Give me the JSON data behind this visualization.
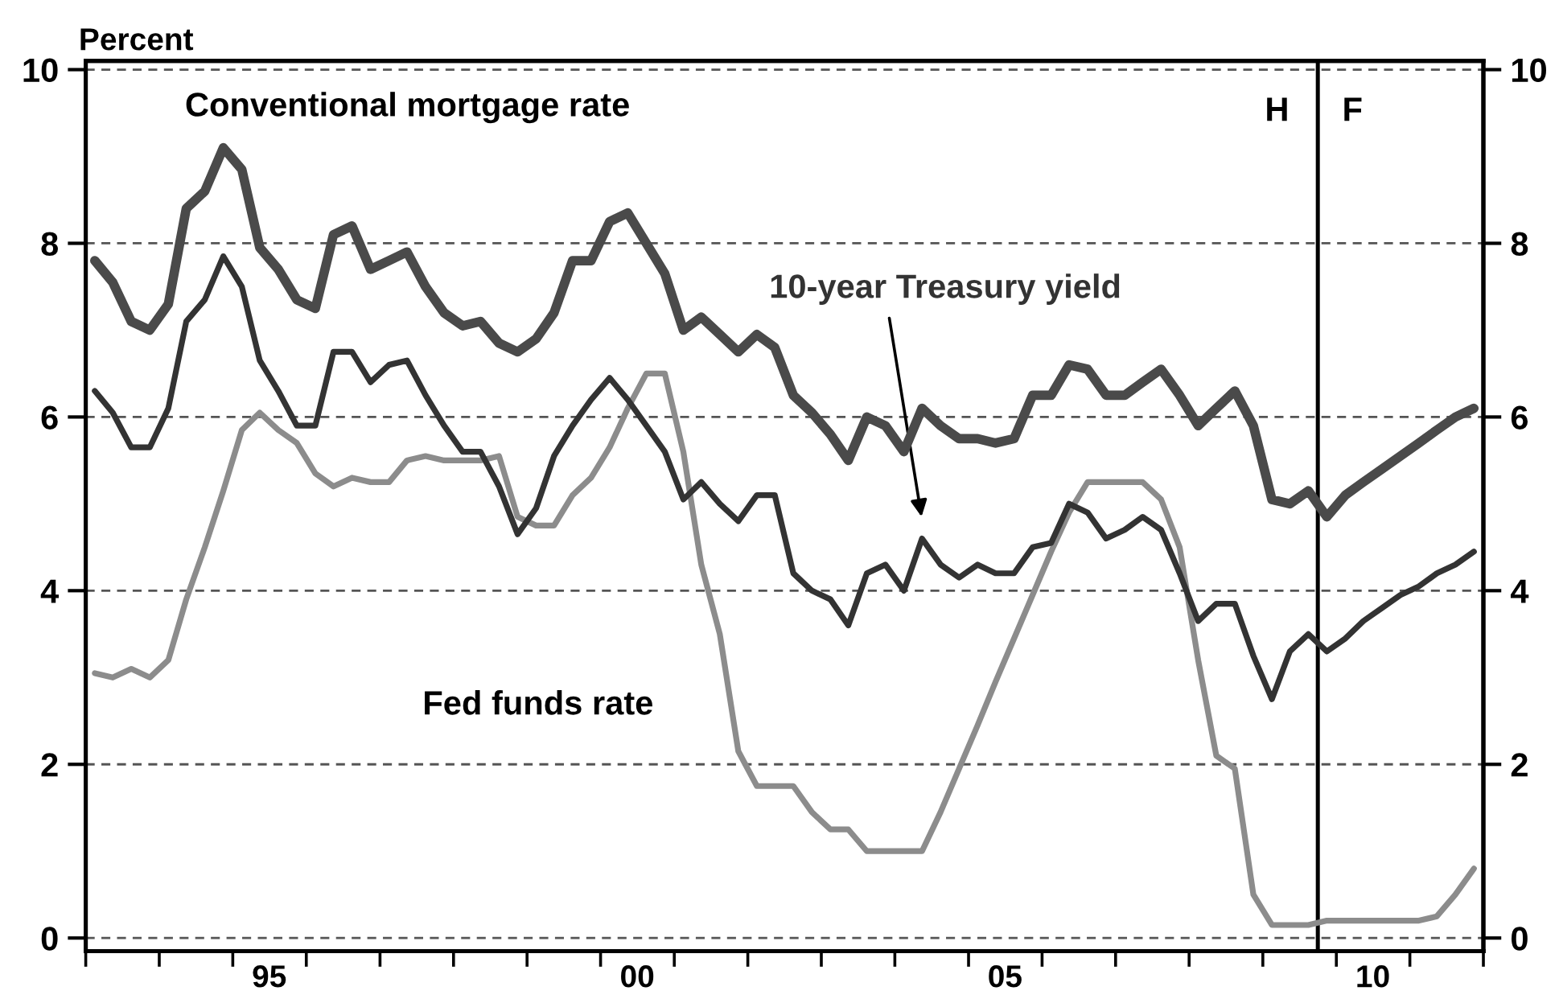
{
  "chart_data": {
    "type": "line",
    "ylabel": "Percent",
    "x": [
      "1993-02-15",
      "1993-05-15",
      "1993-08-15",
      "1993-11-15",
      "1994-02-15",
      "1994-05-15",
      "1994-08-15",
      "1994-11-15",
      "1995-02-15",
      "1995-05-15",
      "1995-08-15",
      "1995-11-15",
      "1996-02-15",
      "1996-05-15",
      "1996-08-15",
      "1996-11-15",
      "1997-02-15",
      "1997-05-15",
      "1997-08-15",
      "1997-11-15",
      "1998-02-15",
      "1998-05-15",
      "1998-08-15",
      "1998-11-15",
      "1999-02-15",
      "1999-05-15",
      "1999-08-15",
      "1999-11-15",
      "2000-02-15",
      "2000-05-15",
      "2000-08-15",
      "2000-11-15",
      "2001-02-15",
      "2001-05-15",
      "2001-08-15",
      "2001-11-15",
      "2002-02-15",
      "2002-05-15",
      "2002-08-15",
      "2002-11-15",
      "2003-02-15",
      "2003-05-15",
      "2003-08-15",
      "2003-11-15",
      "2004-02-15",
      "2004-05-15",
      "2004-08-15",
      "2004-11-15",
      "2005-02-15",
      "2005-05-15",
      "2005-08-15",
      "2005-11-15",
      "2006-02-15",
      "2006-05-15",
      "2006-08-15",
      "2006-11-15",
      "2007-02-15",
      "2007-05-15",
      "2007-08-15",
      "2007-11-15",
      "2008-02-15",
      "2008-05-15",
      "2008-08-15",
      "2008-11-15",
      "2009-02-15",
      "2009-05-15",
      "2009-08-15",
      "2009-11-15",
      "2010-02-15",
      "2010-05-15",
      "2010-08-15",
      "2010-11-15",
      "2011-02-15",
      "2011-05-15",
      "2011-08-15",
      "2011-11-15"
    ],
    "series": [
      {
        "name": "Conventional mortgage rate",
        "color": "#4a4a4a",
        "values": [
          7.8,
          7.55,
          7.1,
          7.0,
          7.3,
          8.4,
          8.6,
          9.1,
          8.85,
          7.95,
          7.7,
          7.35,
          7.25,
          8.1,
          8.2,
          7.7,
          7.8,
          7.9,
          7.5,
          7.2,
          7.05,
          7.1,
          6.85,
          6.75,
          6.9,
          7.2,
          7.8,
          7.8,
          8.25,
          8.35,
          8.0,
          7.65,
          7.0,
          7.15,
          6.95,
          6.75,
          6.95,
          6.8,
          6.25,
          6.05,
          5.8,
          5.5,
          6.0,
          5.9,
          5.6,
          6.1,
          5.9,
          5.75,
          5.75,
          5.7,
          5.75,
          6.25,
          6.25,
          6.6,
          6.55,
          6.25,
          6.25,
          6.4,
          6.55,
          6.25,
          5.9,
          6.1,
          6.3,
          5.9,
          5.05,
          5.0,
          5.15,
          4.85,
          5.1,
          5.25,
          5.4,
          5.55,
          5.7,
          5.85,
          6.0,
          6.1
        ]
      },
      {
        "name": "10-year Treasury yield",
        "color": "#333333",
        "values": [
          6.3,
          6.05,
          5.65,
          5.65,
          6.1,
          7.1,
          7.35,
          7.85,
          7.5,
          6.65,
          6.3,
          5.9,
          5.9,
          6.75,
          6.75,
          6.4,
          6.6,
          6.65,
          6.25,
          5.9,
          5.6,
          5.6,
          5.2,
          4.65,
          4.95,
          5.55,
          5.9,
          6.2,
          6.45,
          6.2,
          5.9,
          5.6,
          5.05,
          5.25,
          5.0,
          4.8,
          5.1,
          5.1,
          4.2,
          4.0,
          3.9,
          3.6,
          4.2,
          4.3,
          4.0,
          4.6,
          4.3,
          4.15,
          4.3,
          4.2,
          4.2,
          4.5,
          4.55,
          5.0,
          4.9,
          4.6,
          4.7,
          4.85,
          4.7,
          4.2,
          3.65,
          3.85,
          3.85,
          3.25,
          2.75,
          3.3,
          3.5,
          3.3,
          3.45,
          3.65,
          3.8,
          3.95,
          4.05,
          4.2,
          4.3,
          4.45
        ]
      },
      {
        "name": "Fed funds rate",
        "color": "#8c8c8c",
        "values": [
          3.05,
          3.0,
          3.1,
          3.0,
          3.2,
          3.9,
          4.5,
          5.15,
          5.85,
          6.05,
          5.85,
          5.7,
          5.35,
          5.2,
          5.3,
          5.25,
          5.25,
          5.5,
          5.55,
          5.5,
          5.5,
          5.5,
          5.55,
          4.85,
          4.75,
          4.75,
          5.1,
          5.3,
          5.65,
          6.1,
          6.5,
          6.5,
          5.6,
          4.3,
          3.5,
          2.15,
          1.75,
          1.75,
          1.75,
          1.45,
          1.25,
          1.25,
          1.0,
          1.0,
          1.0,
          1.0,
          1.45,
          1.95,
          2.45,
          2.95,
          3.45,
          3.95,
          4.45,
          4.9,
          5.25,
          5.25,
          5.25,
          5.25,
          5.05,
          4.5,
          3.2,
          2.1,
          1.95,
          0.5,
          0.15,
          0.15,
          0.15,
          0.2,
          0.2,
          0.2,
          0.2,
          0.2,
          0.2,
          0.25,
          0.5,
          0.8
        ]
      }
    ],
    "xlim": [
      "1993-01-01",
      "2012-01-01"
    ],
    "xticks": [
      {
        "value": "1993-01-01",
        "label": null
      },
      {
        "value": "1994-01-01",
        "label": null
      },
      {
        "value": "1995-01-01",
        "label": null
      },
      {
        "value": "1996-01-01",
        "label": null
      },
      {
        "value": "1997-01-01",
        "label": null
      },
      {
        "value": "1998-01-01",
        "label": null
      },
      {
        "value": "1999-01-01",
        "label": null
      },
      {
        "value": "2000-01-01",
        "label": null
      },
      {
        "value": "2001-01-01",
        "label": null
      },
      {
        "value": "2002-01-01",
        "label": null
      },
      {
        "value": "2003-01-01",
        "label": null
      },
      {
        "value": "2004-01-01",
        "label": null
      },
      {
        "value": "2005-01-01",
        "label": null
      },
      {
        "value": "2006-01-01",
        "label": null
      },
      {
        "value": "2007-01-01",
        "label": null
      },
      {
        "value": "2008-01-01",
        "label": null
      },
      {
        "value": "2009-01-01",
        "label": null
      },
      {
        "value": "2010-01-01",
        "label": null
      },
      {
        "value": "2011-01-01",
        "label": null
      },
      {
        "value": "2012-01-01",
        "label": null
      },
      {
        "value": "1995-07-01",
        "label": "95"
      },
      {
        "value": "2000-07-01",
        "label": "00"
      },
      {
        "value": "2005-07-01",
        "label": "05"
      },
      {
        "value": "2010-07-01",
        "label": "10"
      }
    ],
    "ylim": [
      -0.15,
      10.1
    ],
    "yticks": [
      0,
      2,
      4,
      6,
      8,
      10
    ],
    "y2lim": [
      -0.15,
      10.1
    ],
    "y2ticks": [
      0,
      2,
      4,
      6,
      8,
      10
    ],
    "ref_lines": [
      {
        "axis": "x",
        "value": "2009-10-01",
        "color": "#000000",
        "line_style": "solid"
      }
    ],
    "annotations": [
      "H",
      "F"
    ],
    "grid": "y",
    "legend": false,
    "marker": "none",
    "line_style": "solid"
  }
}
